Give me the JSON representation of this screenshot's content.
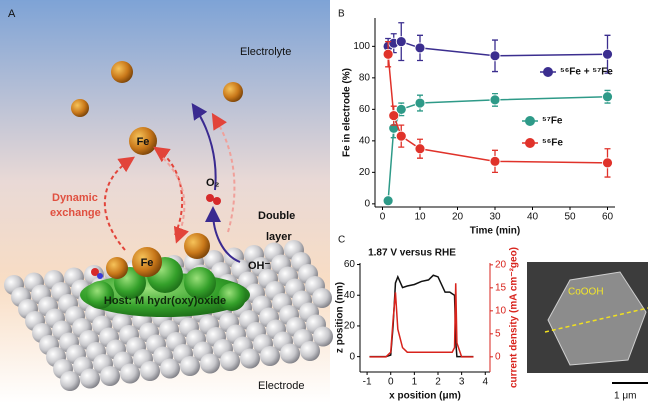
{
  "panel_a": {
    "label": "A",
    "electrolyte": "Electrolyte",
    "fe_top": "Fe",
    "dynamic": [
      "Dynamic",
      "exchange"
    ],
    "o2": "O₂",
    "double_layer": [
      "Double",
      "layer"
    ],
    "oh": "OH⁻",
    "fe_bottom": "Fe",
    "host": "Host: M hydr(oxy)oxide",
    "electrode": "Electrode"
  },
  "chart_data": [
    {
      "type": "line",
      "panel_label": "B",
      "markers": true,
      "xlabel": "Time (min)",
      "ylabel": "Fe in electrode (%)",
      "x": [
        1.5,
        3,
        5,
        10,
        30,
        60
      ],
      "xlim": [
        -2,
        62
      ],
      "xticks": [
        0,
        10,
        20,
        30,
        40,
        50,
        60
      ],
      "ylim": [
        -2,
        118
      ],
      "yticks": [
        0,
        20,
        40,
        60,
        80,
        100
      ],
      "series": [
        {
          "name": "⁵⁶Fe + ⁵⁷Fe",
          "color": "#3b2e8f",
          "values": [
            100,
            102,
            103,
            99,
            94,
            95
          ],
          "errors": [
            5,
            6,
            12,
            8,
            10,
            12
          ]
        },
        {
          "name": "⁵⁷Fe",
          "color": "#2e9a88",
          "values": [
            2,
            48,
            60,
            64,
            66,
            68
          ],
          "errors": [
            1,
            6,
            4,
            5,
            4,
            4
          ]
        },
        {
          "name": "⁵⁶Fe",
          "color": "#e0322a",
          "values": [
            95,
            56,
            43,
            35,
            27,
            26
          ],
          "errors": [
            8,
            6,
            7,
            6,
            7,
            9
          ]
        }
      ]
    },
    {
      "type": "line",
      "panel_label": "C",
      "markers": false,
      "title": "1.87 V versus RHE",
      "xlabel": "x position (μm)",
      "ylabel": "z position (nm)",
      "y2label": "current density (mA cm⁻²geo)",
      "x": [
        -0.9,
        -0.5,
        -0.2,
        0,
        0.1,
        0.2,
        0.3,
        0.5,
        0.7,
        1.0,
        1.3,
        1.6,
        1.8,
        2.0,
        2.3,
        2.5,
        2.6,
        2.7,
        2.75,
        2.8,
        3.0,
        3.2,
        3.5
      ],
      "xlim": [
        -1.3,
        4.2
      ],
      "xticks": [
        -1,
        0,
        1,
        2,
        3,
        4
      ],
      "ylim": [
        -10,
        61
      ],
      "yticks": [
        0,
        20,
        40,
        60
      ],
      "y2lim": [
        -3.3,
        20.4
      ],
      "y2ticks": [
        0,
        5,
        10,
        15,
        20
      ],
      "series": [
        {
          "color": "#111111",
          "values": [
            0,
            0,
            0,
            1,
            20,
            48,
            52,
            45,
            46,
            47,
            49,
            50,
            53,
            52,
            42,
            42,
            41,
            40,
            10,
            0,
            0,
            0,
            0
          ]
        },
        {
          "color": "#d8231c",
          "axis": "y2",
          "values": [
            0,
            0,
            0,
            1,
            8,
            14,
            6,
            2,
            1,
            1,
            1,
            1,
            1,
            1,
            1,
            1,
            1,
            2,
            16,
            3,
            0,
            0,
            0
          ]
        }
      ]
    }
  ],
  "panel_c_image": {
    "label": "CoOOH",
    "scale": "1 μm"
  }
}
